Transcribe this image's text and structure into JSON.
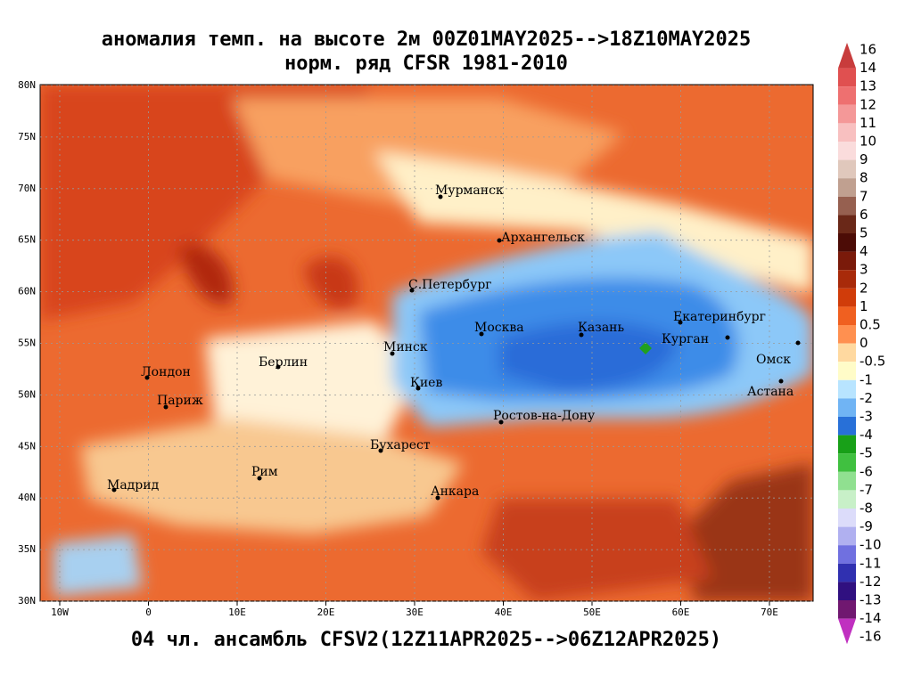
{
  "title": "аномалия темп. на высоте 2м 00Z01MAY2025-->18Z10MAY2025",
  "subtitle": "норм. ряд CFSR 1981-2010",
  "caption": "04 чл. ансамбль CFSV2(12Z11APR2025-->06Z12APR2025)",
  "lon_ticks": [
    "10W",
    "0",
    "10E",
    "20E",
    "30E",
    "40E",
    "50E",
    "60E",
    "70E"
  ],
  "lat_ticks": [
    "80N",
    "75N",
    "70N",
    "65N",
    "60N",
    "55N",
    "50N",
    "45N",
    "40N",
    "35N",
    "30N"
  ],
  "cities": [
    "Мурманск",
    "Архангельск",
    "С.Петербург",
    "Москва",
    "Казань",
    "Екатеринбург",
    "Курган",
    "Омск",
    "Астана",
    "Минск",
    "Киев",
    "Берлин",
    "Лондон",
    "Париж",
    "Ростов-на-Дону",
    "Бухарест",
    "Рим",
    "Мадрид",
    "Анкара"
  ],
  "colorbar": [
    "16",
    "14",
    "13",
    "12",
    "11",
    "10",
    "9",
    "8",
    "7",
    "6",
    "5",
    "4",
    "3",
    "2",
    "1",
    "0.5",
    "0",
    "-0.5",
    "-1",
    "-2",
    "-3",
    "-4",
    "-5",
    "-6",
    "-7",
    "-8",
    "-9",
    "-10",
    "-11",
    "-12",
    "-13",
    "-14",
    "-16"
  ]
}
